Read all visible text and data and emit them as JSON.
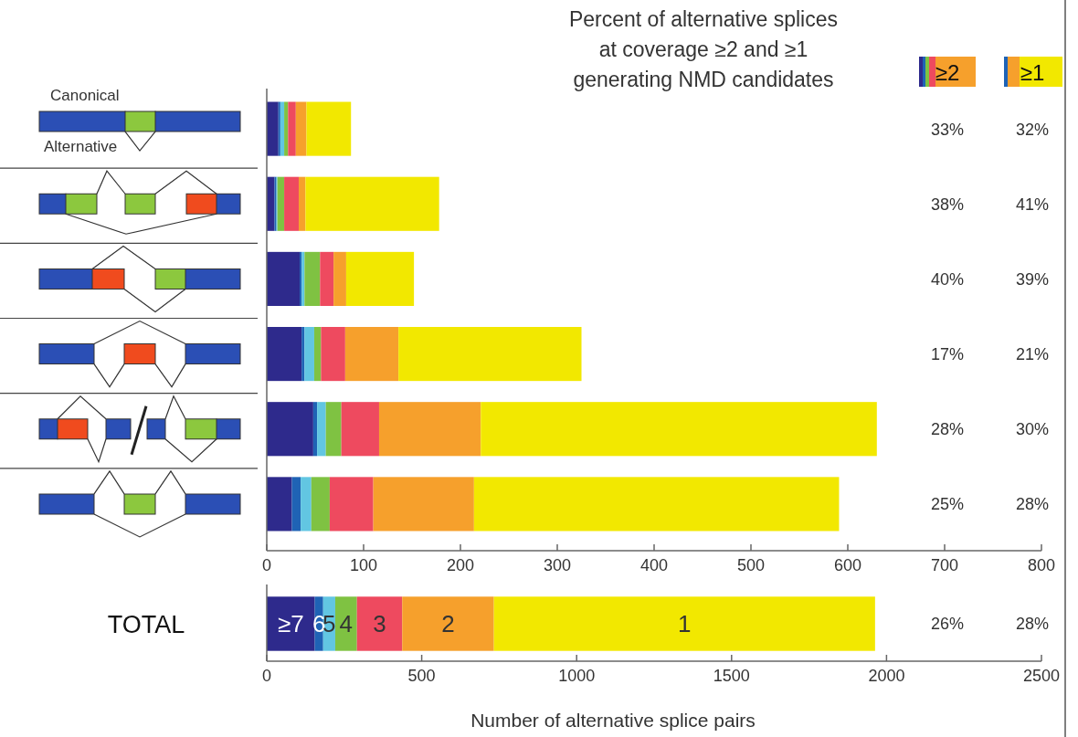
{
  "chart_data": [
    {
      "type": "bar",
      "orientation": "horizontal",
      "stacked": true,
      "categories": [
        null,
        null,
        null,
        null,
        null,
        null
      ],
      "series": [
        {
          "color": "#2e2a8c",
          "values": [
            12,
            8,
            34,
            36,
            48,
            26
          ]
        },
        {
          "color": "#1f63b5",
          "values": [
            2,
            2,
            2,
            3,
            4,
            9
          ]
        },
        {
          "color": "#62c6e2",
          "values": [
            4,
            1,
            3,
            10,
            9,
            11
          ]
        },
        {
          "color": "#7fc242",
          "values": [
            4,
            7,
            16,
            7,
            16,
            19
          ]
        },
        {
          "color": "#ee4a5f",
          "values": [
            8,
            15,
            14,
            25,
            39,
            45
          ]
        },
        {
          "color": "#f6a02c",
          "values": [
            11,
            7,
            13,
            55,
            105,
            104
          ]
        },
        {
          "color": "#f2e800",
          "values": [
            46,
            138,
            70,
            189,
            409,
            377
          ]
        }
      ],
      "xlim": [
        0,
        800
      ],
      "xticks": [
        0,
        100,
        200,
        300,
        400,
        500,
        600,
        700,
        800
      ],
      "annotations": [
        "Canonical",
        "Alternative"
      ]
    },
    {
      "type": "bar",
      "orientation": "horizontal",
      "stacked": true,
      "categories": [
        "TOTAL"
      ],
      "series": [
        {
          "name": "≥7",
          "color": "#2e2a8c",
          "values": [
            155
          ]
        },
        {
          "name": "6",
          "color": "#1f63b5",
          "values": [
            27
          ]
        },
        {
          "name": "5",
          "color": "#62c6e2",
          "values": [
            39
          ]
        },
        {
          "name": "4",
          "color": "#7fc242",
          "values": [
            70
          ]
        },
        {
          "name": "3",
          "color": "#ee4a5f",
          "values": [
            146
          ]
        },
        {
          "name": "2",
          "color": "#f6a02c",
          "values": [
            296
          ]
        },
        {
          "name": "1",
          "color": "#f2e800",
          "values": [
            1230
          ]
        }
      ],
      "xlim": [
        0,
        2500
      ],
      "xticks": [
        0,
        500,
        1000,
        1500,
        2000,
        2500
      ],
      "xlabel": "Number of alternative splice pairs"
    },
    {
      "type": "other",
      "title": "Percent of alternative splices\nat coverage ≥2 and ≥1\ngenerating NMD candidates",
      "categories": [
        "≥2",
        "≥1"
      ],
      "annotations": [
        "33%",
        "32%",
        "38%",
        "41%",
        "40%",
        "39%",
        "17%",
        "21%",
        "28%",
        "30%",
        "25%",
        "28%",
        "26%",
        "28%"
      ]
    }
  ]
}
